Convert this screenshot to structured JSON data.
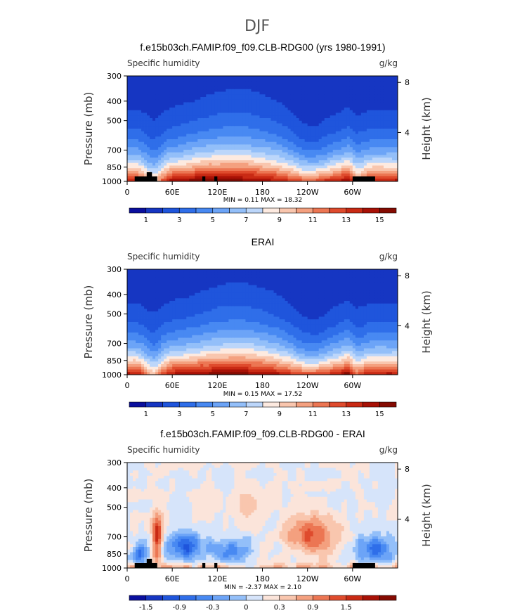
{
  "figure": {
    "title": "DJF",
    "left_axis_label": "Pressure (mb)",
    "right_axis_label": "Height (km)",
    "variable_label": "Specific humidity",
    "units_label": "g/kg"
  },
  "chart_data": [
    {
      "type": "heatmap",
      "title": "f.e15b03ch.FAMIP.f09_f09.CLB-RDG00 (yrs 1980-1991)",
      "subtitle": "Specific humidity",
      "units": "g/kg",
      "xlabel": "",
      "ylabel": "Pressure (mb)",
      "y2label": "Height (km)",
      "x_ticks": [
        "0",
        "60E",
        "120E",
        "180",
        "120W",
        "60W"
      ],
      "y_ticks": [
        "300",
        "400",
        "500",
        "700",
        "850",
        "1000"
      ],
      "y2_ticks": [
        "8",
        "4"
      ],
      "stats": "MIN =    0.11   MAX =   18.32",
      "min": 0.11,
      "max": 18.32,
      "colorbar": {
        "labels": [
          "1",
          "3",
          "5",
          "7",
          "9",
          "11",
          "13",
          "15"
        ],
        "colors": [
          "#0a0f9e",
          "#1636c2",
          "#1f55dc",
          "#2f6ee9",
          "#4889f2",
          "#6ca4f7",
          "#93bff9",
          "#bcd6fa",
          "#fdeae0",
          "#f9c6ae",
          "#f4a07f",
          "#ec7653",
          "#df4b2d",
          "#c92a14",
          "#a81106",
          "#850b02"
        ]
      }
    },
    {
      "type": "heatmap",
      "title": "ERAI",
      "subtitle": "Specific humidity",
      "units": "g/kg",
      "xlabel": "",
      "ylabel": "Pressure (mb)",
      "y2label": "Height (km)",
      "x_ticks": [
        "0",
        "60E",
        "120E",
        "180",
        "120W",
        "60W"
      ],
      "y_ticks": [
        "300",
        "400",
        "500",
        "700",
        "850",
        "1000"
      ],
      "y2_ticks": [
        "8",
        "4"
      ],
      "stats": "MIN =    0.15   MAX =   17.52",
      "min": 0.15,
      "max": 17.52,
      "colorbar": {
        "labels": [
          "1",
          "3",
          "5",
          "7",
          "9",
          "11",
          "13",
          "15"
        ],
        "colors": [
          "#0a0f9e",
          "#1636c2",
          "#1f55dc",
          "#2f6ee9",
          "#4889f2",
          "#6ca4f7",
          "#93bff9",
          "#bcd6fa",
          "#fdeae0",
          "#f9c6ae",
          "#f4a07f",
          "#ec7653",
          "#df4b2d",
          "#c92a14",
          "#a81106",
          "#850b02"
        ]
      }
    },
    {
      "type": "heatmap",
      "title": "f.e15b03ch.FAMIP.f09_f09.CLB-RDG00 - ERAI",
      "subtitle": "Specific humidity",
      "units": "g/kg",
      "xlabel": "",
      "ylabel": "Pressure (mb)",
      "y2label": "Height (km)",
      "x_ticks": [
        "0",
        "60E",
        "120E",
        "180",
        "120W",
        "60W"
      ],
      "y_ticks": [
        "300",
        "400",
        "500",
        "700",
        "850",
        "1000"
      ],
      "y2_ticks": [
        "8",
        "4"
      ],
      "stats": "MIN =   -2.37   MAX =    2.10",
      "min": -2.37,
      "max": 2.1,
      "colorbar": {
        "labels": [
          "-1.5",
          "-0.9",
          "-0.3",
          "0",
          "0.3",
          "0.9",
          "1.5"
        ],
        "colors": [
          "#0a0f9e",
          "#1636c2",
          "#1f55dc",
          "#2f6ee9",
          "#4889f2",
          "#6ca4f7",
          "#93bff9",
          "#d6e4fa",
          "#fbe4da",
          "#f9c6ae",
          "#f4a07f",
          "#ec7653",
          "#df4b2d",
          "#c92a14",
          "#a81106",
          "#850b02"
        ]
      }
    }
  ]
}
